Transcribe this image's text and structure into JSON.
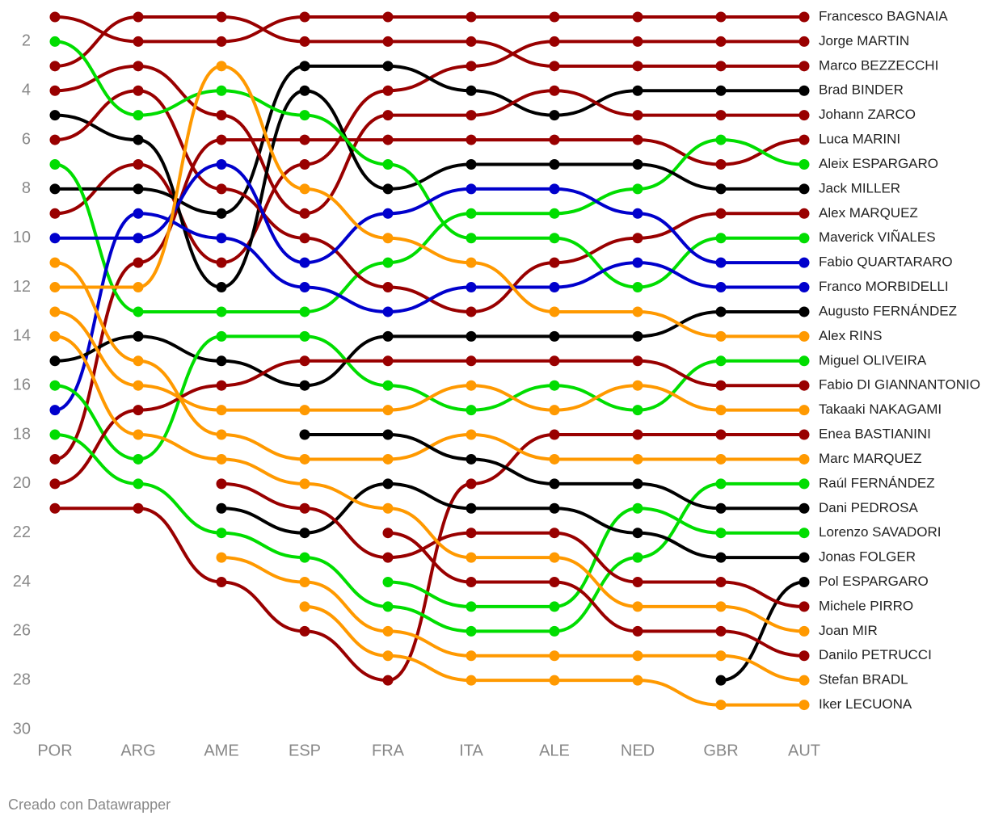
{
  "chart_data": {
    "type": "bump",
    "categories": [
      "POR",
      "ARG",
      "AME",
      "ESP",
      "FRA",
      "ITA",
      "ALE",
      "NED",
      "GBR",
      "AUT"
    ],
    "ylim": [
      1,
      30
    ],
    "y_reversed": true,
    "yticks": [
      2,
      4,
      6,
      8,
      10,
      12,
      14,
      16,
      18,
      20,
      22,
      24,
      26,
      28,
      30
    ],
    "series": [
      {
        "name": "Francesco BAGNAIA",
        "color": "#990000",
        "values": [
          1,
          2,
          2,
          1,
          1,
          1,
          1,
          1,
          1,
          1
        ]
      },
      {
        "name": "Jorge MARTIN",
        "color": "#990000",
        "values": [
          9,
          7,
          11,
          7,
          4,
          3,
          2,
          2,
          2,
          2
        ]
      },
      {
        "name": "Marco BEZZECCHI",
        "color": "#990000",
        "values": [
          3,
          1,
          1,
          2,
          2,
          2,
          3,
          3,
          3,
          3
        ]
      },
      {
        "name": "Brad BINDER",
        "color": "#000000",
        "values": [
          8,
          8,
          9,
          3,
          3,
          4,
          5,
          4,
          4,
          4
        ]
      },
      {
        "name": "Johann ZARCO",
        "color": "#990000",
        "values": [
          4,
          3,
          5,
          9,
          5,
          5,
          4,
          5,
          5,
          5
        ]
      },
      {
        "name": "Luca MARINI",
        "color": "#990000",
        "values": [
          19,
          11,
          6,
          6,
          6,
          6,
          6,
          6,
          7,
          6
        ]
      },
      {
        "name": "Aleix ESPARGARO",
        "color": "#00dd00",
        "values": [
          7,
          13,
          13,
          13,
          11,
          9,
          9,
          8,
          6,
          7
        ]
      },
      {
        "name": "Jack MILLER",
        "color": "#000000",
        "values": [
          5,
          6,
          12,
          4,
          8,
          7,
          7,
          7,
          8,
          8
        ]
      },
      {
        "name": "Alex MARQUEZ",
        "color": "#990000",
        "values": [
          6,
          4,
          8,
          10,
          12,
          13,
          11,
          10,
          9,
          9
        ]
      },
      {
        "name": "Maverick VIÑALES",
        "color": "#00dd00",
        "values": [
          2,
          5,
          4,
          5,
          7,
          10,
          10,
          12,
          10,
          10
        ]
      },
      {
        "name": "Fabio QUARTARARO",
        "color": "#0000cc",
        "values": [
          10,
          10,
          7,
          11,
          9,
          8,
          8,
          9,
          11,
          11
        ]
      },
      {
        "name": "Franco MORBIDELLI",
        "color": "#0000cc",
        "values": [
          17,
          9,
          10,
          12,
          13,
          12,
          12,
          11,
          12,
          12
        ]
      },
      {
        "name": "Augusto FERNÁNDEZ",
        "color": "#000000",
        "values": [
          15,
          14,
          15,
          16,
          14,
          14,
          14,
          14,
          13,
          13
        ]
      },
      {
        "name": "Alex RINS",
        "color": "#ff9900",
        "values": [
          12,
          12,
          3,
          8,
          10,
          11,
          13,
          13,
          14,
          14
        ]
      },
      {
        "name": "Miguel OLIVEIRA",
        "color": "#00dd00",
        "values": [
          16,
          19,
          14,
          14,
          16,
          17,
          16,
          17,
          15,
          15
        ]
      },
      {
        "name": "Fabio DI GIANNANTONIO",
        "color": "#990000",
        "values": [
          20,
          17,
          16,
          15,
          15,
          15,
          15,
          15,
          16,
          16
        ]
      },
      {
        "name": "Takaaki NAKAGAMI",
        "color": "#ff9900",
        "values": [
          13,
          16,
          17,
          17,
          17,
          16,
          17,
          16,
          17,
          17
        ]
      },
      {
        "name": "Enea BASTIANINI",
        "color": "#990000",
        "values": [
          21,
          21,
          24,
          26,
          28,
          20,
          18,
          18,
          18,
          18
        ]
      },
      {
        "name": "Marc MARQUEZ",
        "color": "#ff9900",
        "values": [
          11,
          15,
          18,
          19,
          19,
          18,
          19,
          19,
          19,
          19
        ]
      },
      {
        "name": "Raúl FERNÁNDEZ",
        "color": "#00dd00",
        "values": [
          18,
          20,
          22,
          23,
          25,
          26,
          26,
          23,
          20,
          20
        ]
      },
      {
        "name": "Dani PEDROSA",
        "color": "#000000",
        "values": [
          null,
          null,
          null,
          18,
          18,
          19,
          20,
          20,
          21,
          21
        ]
      },
      {
        "name": "Lorenzo SAVADORI",
        "color": "#00dd00",
        "values": [
          null,
          null,
          null,
          null,
          24,
          25,
          25,
          21,
          22,
          22
        ]
      },
      {
        "name": "Jonas FOLGER",
        "color": "#000000",
        "values": [
          null,
          null,
          21,
          22,
          20,
          21,
          21,
          22,
          23,
          23
        ]
      },
      {
        "name": "Pol ESPARGARO",
        "color": "#000000",
        "values": [
          null,
          null,
          null,
          null,
          null,
          null,
          null,
          null,
          28,
          24
        ]
      },
      {
        "name": "Michele PIRRO",
        "color": "#990000",
        "values": [
          null,
          null,
          20,
          21,
          23,
          22,
          22,
          24,
          24,
          25
        ]
      },
      {
        "name": "Joan MIR",
        "color": "#ff9900",
        "values": [
          14,
          18,
          19,
          20,
          21,
          23,
          23,
          25,
          25,
          26
        ]
      },
      {
        "name": "Danilo PETRUCCI",
        "color": "#990000",
        "values": [
          null,
          null,
          null,
          null,
          22,
          24,
          24,
          26,
          26,
          27
        ]
      },
      {
        "name": "Stefan BRADL",
        "color": "#ff9900",
        "values": [
          null,
          null,
          23,
          24,
          26,
          27,
          27,
          27,
          27,
          28
        ]
      },
      {
        "name": "Iker LECUONA",
        "color": "#ff9900",
        "values": [
          null,
          null,
          null,
          25,
          27,
          28,
          28,
          28,
          29,
          29
        ]
      }
    ],
    "source": "Creado con Datawrapper"
  }
}
